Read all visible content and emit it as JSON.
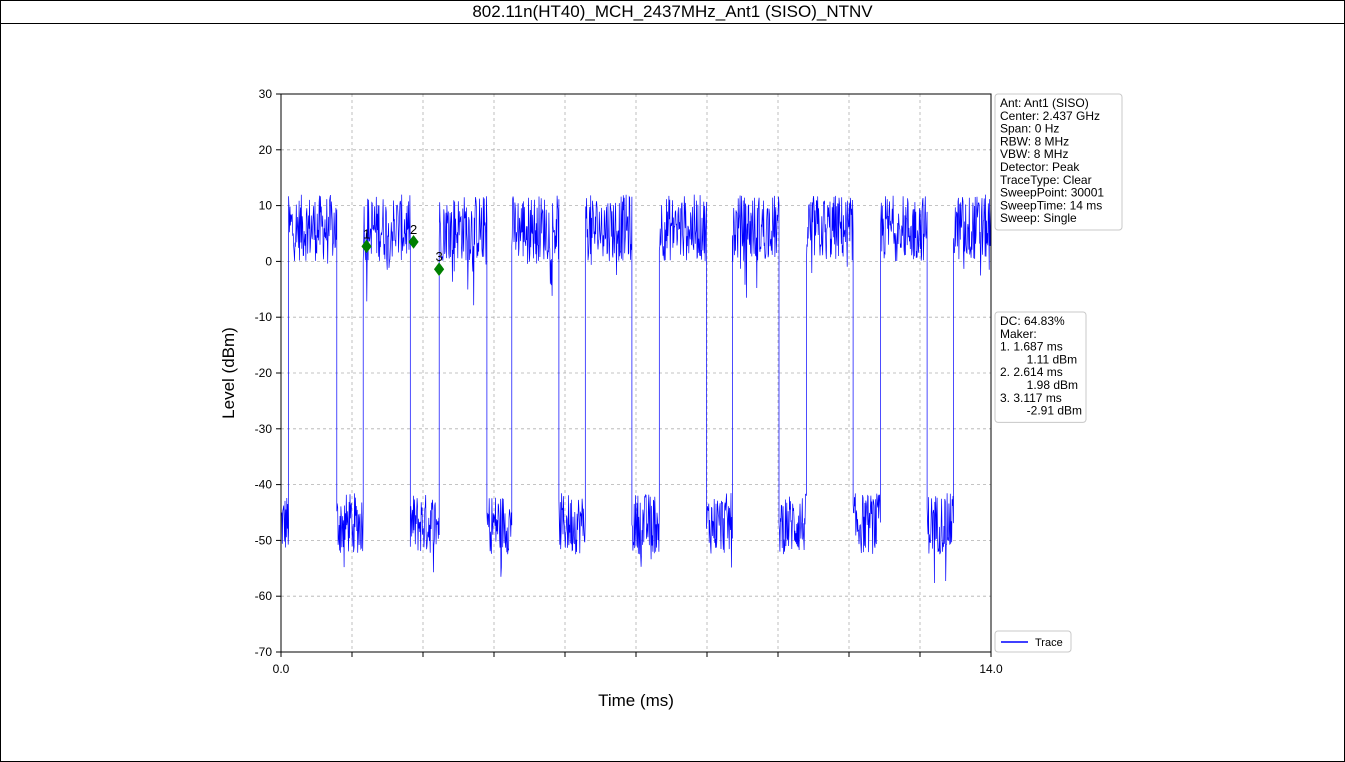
{
  "page_title": "802.11n(HT40)_MCH_2437MHz_Ant1 (SISO)_NTNV",
  "colors": {
    "trace": "#0000ff",
    "marker": "#008000",
    "grid": "#b0b0b0"
  },
  "chart_data": {
    "type": "line",
    "title": "802.11n(HT40)_MCH_2437MHz_Ant1 (SISO)_NTNV",
    "xlabel": "Time (ms)",
    "ylabel": "Level (dBm)",
    "xlim": [
      0.0,
      14.0
    ],
    "ylim": [
      -70,
      30
    ],
    "x_tick_labels": [
      "0.0",
      "14.0"
    ],
    "x_grid_ticks": [
      1.4,
      2.8,
      4.2,
      5.6,
      7.0,
      8.4,
      9.8,
      11.2,
      12.6
    ],
    "yticks": [
      30,
      20,
      10,
      0,
      -10,
      -20,
      -30,
      -40,
      -50,
      -60,
      -70
    ],
    "grid": true,
    "legend_position": "bottom-right",
    "series": [
      {
        "name": "Trace",
        "on_level_dBm": 6,
        "off_level_dBm": -47,
        "on_intervals_ms": [
          [
            0.15,
            1.1
          ],
          [
            1.62,
            2.55
          ],
          [
            3.12,
            4.06
          ],
          [
            4.55,
            5.48
          ],
          [
            6.0,
            6.92
          ],
          [
            7.46,
            8.39
          ],
          [
            8.9,
            9.82
          ],
          [
            10.36,
            11.28
          ],
          [
            11.82,
            12.74
          ],
          [
            13.26,
            14.0
          ]
        ],
        "off_intervals_ms": [
          [
            0.0,
            0.15
          ],
          [
            1.1,
            1.62
          ],
          [
            2.55,
            3.12
          ],
          [
            4.06,
            4.55
          ],
          [
            5.48,
            6.0
          ],
          [
            6.92,
            7.46
          ],
          [
            8.39,
            8.9
          ],
          [
            9.82,
            10.36
          ],
          [
            11.28,
            11.82
          ],
          [
            12.74,
            13.26
          ]
        ]
      }
    ],
    "markers": [
      {
        "label": "1",
        "x": 1.687,
        "y": 2.7
      },
      {
        "label": "2",
        "x": 2.614,
        "y": 3.5
      },
      {
        "label": "3",
        "x": 3.117,
        "y": -1.4
      }
    ]
  },
  "settings_box": [
    "Ant: Ant1 (SISO)",
    "Center: 2.437 GHz",
    "Span: 0 Hz",
    "RBW: 8 MHz",
    "VBW: 8 MHz",
    "Detector: Peak",
    "TraceType: Clear",
    "SweepPoint: 30001",
    "SweepTime: 14 ms",
    "Sweep: Single"
  ],
  "marker_box": [
    "DC: 64.83%",
    "Maker:",
    "1. 1.687 ms",
    "    1.11 dBm",
    "2. 2.614 ms",
    "    1.98 dBm",
    "3. 3.117 ms",
    "    -2.91 dBm"
  ],
  "legend": {
    "label": "Trace"
  }
}
